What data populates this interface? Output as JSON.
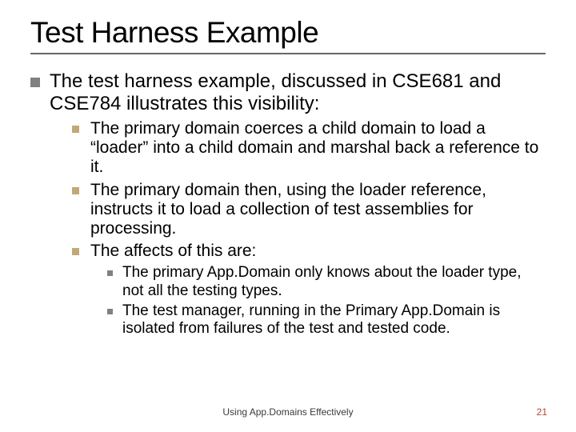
{
  "colors": {
    "title_text": "#000000",
    "body_text": "#000000",
    "rule": "#666666",
    "bullet_lvl1": "#808080",
    "bullet_lvl2": "#c0a878",
    "bullet_lvl3": "#808080",
    "footer_text": "#3a3a3a",
    "page_number": "#b04830",
    "background": "#ffffff"
  },
  "typography": {
    "title_fontsize": 37,
    "lvl1_fontsize": 24,
    "lvl2_fontsize": 21,
    "lvl3_fontsize": 19,
    "footer_fontsize": 12,
    "font_family": "Trebuchet MS / Comic Sans style"
  },
  "title": "Test Harness Example",
  "lvl1": "The test harness example, discussed in CSE681 and CSE784 illustrates this visibility:",
  "lvl2": {
    "a": "The primary domain coerces a child domain to load a “loader” into a child domain and marshal back a reference to it.",
    "b": "The primary domain then, using the loader reference, instructs it to load a collection of test assemblies for processing.",
    "c": "The affects of this are:"
  },
  "lvl3": {
    "a": "The primary App.Domain only knows about the loader type, not all the testing types.",
    "b": "The test manager, running in the Primary App.Domain is isolated from failures of the test and tested code."
  },
  "footer": "Using App.Domains Effectively",
  "page_number": "21"
}
